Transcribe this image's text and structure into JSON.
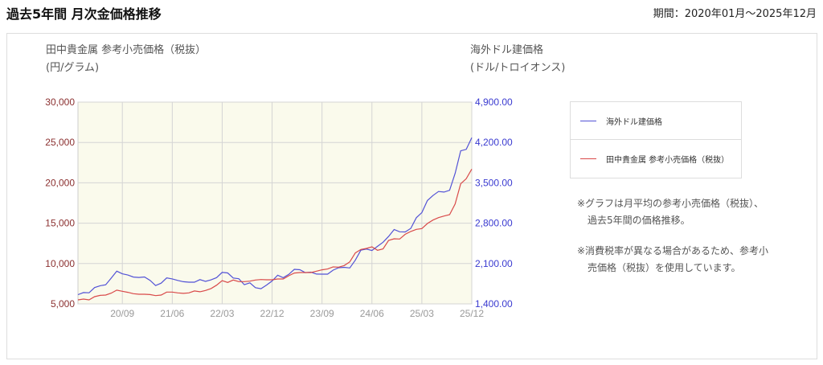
{
  "header": {
    "title": "過去5年間 月次金価格推移",
    "period": "期間：2020年01月～2025年12月"
  },
  "axis_titles": {
    "left_line1": "田中貴金属 参考小売価格（税抜）",
    "left_line2": "(円/グラム)",
    "right_line1": "海外ドル建価格",
    "right_line2": "(ドル/トロイオンス)"
  },
  "legend": {
    "usd": "海外ドル建価格",
    "jpy": "田中貴金属 参考小売価格（税抜）"
  },
  "notes": {
    "n1a": "※グラフは月平均の参考小売価格（税抜）、",
    "n1b": "過去5年間の価格推移。",
    "n2a": "※消費税率が異なる場合があるため、参考小",
    "n2b": "売価格（税抜）を使用しています。"
  },
  "chart_data": {
    "type": "line",
    "x_start": "2020/01",
    "x_end": "2025/12",
    "x_tick_labels": [
      "20/09",
      "21/06",
      "22/03",
      "22/12",
      "23/09",
      "24/06",
      "25/03",
      "25/12"
    ],
    "y_left": {
      "range": [
        5000,
        30000
      ],
      "ticks": [
        "5,000",
        "10,000",
        "15,000",
        "20,000",
        "25,000",
        "30,000"
      ]
    },
    "y_right": {
      "range": [
        1400,
        4900
      ],
      "ticks": [
        "1,400.00",
        "2,100.00",
        "2,800.00",
        "3,500.00",
        "4,200.00",
        "4,900.00"
      ]
    },
    "grid": true,
    "legend_position": "right",
    "colors": {
      "usd": "#5252d6",
      "jpy": "#d94a4a",
      "plot_bg": "#fafaec",
      "left_axis": "#8b3030",
      "right_axis": "#3a3ad0"
    },
    "series": [
      {
        "name": "海外ドル建価格",
        "axis": "right",
        "values": [
          1560,
          1597,
          1592,
          1683,
          1715,
          1732,
          1847,
          1968,
          1921,
          1900,
          1866,
          1859,
          1867,
          1808,
          1718,
          1760,
          1850,
          1834,
          1807,
          1785,
          1776,
          1777,
          1821,
          1790,
          1817,
          1856,
          1947,
          1937,
          1849,
          1837,
          1733,
          1765,
          1681,
          1664,
          1726,
          1798,
          1898,
          1855,
          1912,
          1999,
          1992,
          1943,
          1951,
          1918,
          1916,
          1916,
          1985,
          2027,
          2034,
          2024,
          2159,
          2331,
          2351,
          2326,
          2398,
          2470,
          2570,
          2690,
          2651,
          2648,
          2709,
          2895,
          2984,
          3193,
          3280,
          3350,
          3340,
          3370,
          3665,
          4055,
          4080,
          4282
        ]
      },
      {
        "name": "田中貴金属 参考小売価格（税抜）",
        "axis": "left",
        "values": [
          5500,
          5600,
          5500,
          5900,
          6060,
          6100,
          6330,
          6700,
          6560,
          6430,
          6260,
          6200,
          6200,
          6160,
          6030,
          6100,
          6460,
          6460,
          6360,
          6300,
          6360,
          6600,
          6500,
          6660,
          6900,
          7320,
          7890,
          7660,
          7960,
          7760,
          7760,
          7820,
          7960,
          8020,
          7990,
          7990,
          8090,
          8090,
          8490,
          8820,
          8880,
          8880,
          8880,
          9050,
          9220,
          9320,
          9580,
          9550,
          9750,
          10210,
          11310,
          11740,
          11870,
          12070,
          11640,
          11810,
          12870,
          13070,
          13040,
          13630,
          13970,
          14230,
          14330,
          14960,
          15390,
          15690,
          15890,
          16060,
          17380,
          19880,
          20510,
          21700
        ]
      }
    ]
  }
}
